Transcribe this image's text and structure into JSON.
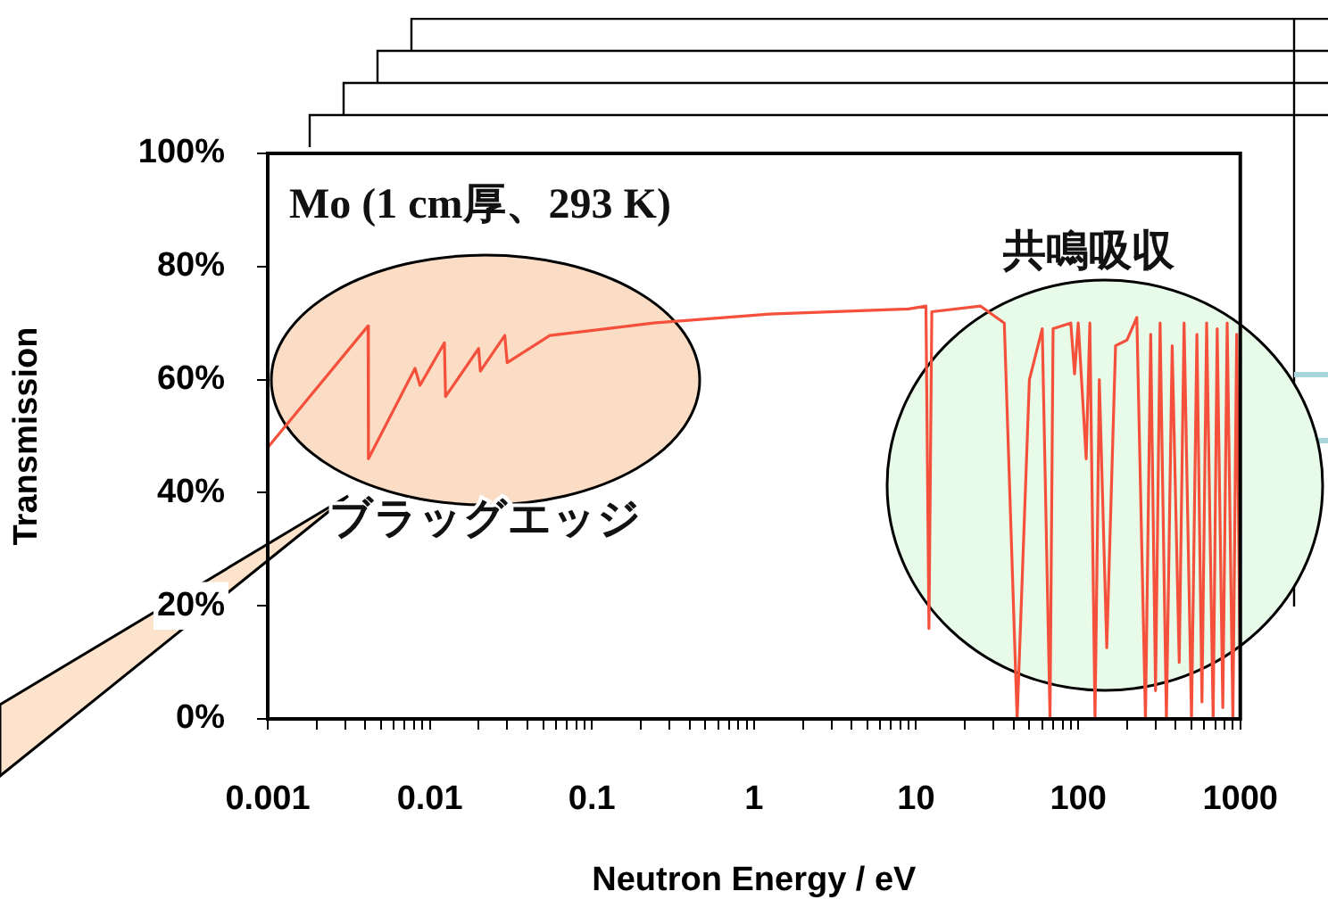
{
  "chart_data": {
    "type": "line",
    "title": "Mo (1 cm厚、293 K)",
    "xlabel": "Neutron Energy / eV",
    "ylabel": "Transmission",
    "log": "x",
    "grid": false,
    "legend": false,
    "marker": "none",
    "line_style": "solid",
    "xlim": [
      0.001,
      1000
    ],
    "xticks": [
      0.001,
      {
        "value": 0.002,
        "label": null
      },
      {
        "value": 0.003,
        "label": null
      },
      {
        "value": 0.004,
        "label": null
      },
      {
        "value": 0.005,
        "label": null
      },
      {
        "value": 0.006,
        "label": null
      },
      {
        "value": 0.007,
        "label": null
      },
      {
        "value": 0.008,
        "label": null
      },
      {
        "value": 0.009,
        "label": null
      },
      0.01,
      {
        "value": 0.02,
        "label": null
      },
      {
        "value": 0.03,
        "label": null
      },
      {
        "value": 0.04,
        "label": null
      },
      {
        "value": 0.05,
        "label": null
      },
      {
        "value": 0.06,
        "label": null
      },
      {
        "value": 0.07,
        "label": null
      },
      {
        "value": 0.08,
        "label": null
      },
      {
        "value": 0.09,
        "label": null
      },
      0.1,
      {
        "value": 0.2,
        "label": null
      },
      {
        "value": 0.3,
        "label": null
      },
      {
        "value": 0.4,
        "label": null
      },
      {
        "value": 0.5,
        "label": null
      },
      {
        "value": 0.6,
        "label": null
      },
      {
        "value": 0.7,
        "label": null
      },
      {
        "value": 0.8,
        "label": null
      },
      {
        "value": 0.9,
        "label": null
      },
      1,
      {
        "value": 2,
        "label": null
      },
      {
        "value": 3,
        "label": null
      },
      {
        "value": 4,
        "label": null
      },
      {
        "value": 5,
        "label": null
      },
      {
        "value": 6,
        "label": null
      },
      {
        "value": 7,
        "label": null
      },
      {
        "value": 8,
        "label": null
      },
      {
        "value": 9,
        "label": null
      },
      10,
      {
        "value": 20,
        "label": null
      },
      {
        "value": 30,
        "label": null
      },
      {
        "value": 40,
        "label": null
      },
      {
        "value": 50,
        "label": null
      },
      {
        "value": 60,
        "label": null
      },
      {
        "value": 70,
        "label": null
      },
      {
        "value": 80,
        "label": null
      },
      {
        "value": 90,
        "label": null
      },
      100,
      {
        "value": 200,
        "label": null
      },
      {
        "value": 300,
        "label": null
      },
      {
        "value": 400,
        "label": null
      },
      {
        "value": 500,
        "label": null
      },
      {
        "value": 600,
        "label": null
      },
      {
        "value": 700,
        "label": null
      },
      {
        "value": 800,
        "label": null
      },
      {
        "value": 900,
        "label": null
      },
      1000
    ],
    "ylim": [
      0,
      100
    ],
    "yticks": [
      {
        "value": 0,
        "label": "0%"
      },
      {
        "value": 20,
        "label": "20%"
      },
      {
        "value": 40,
        "label": "40%"
      },
      {
        "value": 60,
        "label": "60%"
      },
      {
        "value": 80,
        "label": "80%"
      },
      {
        "value": 100,
        "label": "100%"
      }
    ],
    "annotations": [
      "ブラッグエッジ",
      "共鳴吸収"
    ],
    "series": [
      {
        "color": "#f4503c",
        "x": [
          0.001,
          0.00416,
          0.00418,
          0.0081,
          0.0087,
          0.0123,
          0.0125,
          0.02,
          0.0205,
          0.029,
          0.03,
          0.055,
          0.107,
          0.24,
          1.24,
          9,
          11.5,
          12,
          12.5,
          25,
          35,
          42,
          50,
          60,
          67,
          70,
          90,
          95,
          100,
          112,
          118,
          127,
          135,
          150,
          170,
          200,
          230,
          260,
          280,
          300,
          320,
          350,
          380,
          420,
          450,
          500,
          540,
          580,
          620,
          680,
          720,
          780,
          830,
          900,
          950,
          1000
        ],
        "values": [
          48,
          69.5,
          46,
          62,
          59,
          66.5,
          57,
          65.5,
          61.5,
          67.8,
          63,
          67.8,
          68.8,
          70,
          71.6,
          72.5,
          73,
          16,
          72,
          73,
          70,
          0,
          60,
          69,
          0,
          69,
          70,
          61,
          70,
          46,
          70,
          0,
          60,
          12.6,
          66,
          67,
          71,
          0,
          68,
          5,
          70,
          0,
          66,
          10,
          70,
          0,
          68,
          3,
          70,
          0,
          69,
          2,
          70,
          0,
          68,
          5
        ]
      }
    ]
  }
}
